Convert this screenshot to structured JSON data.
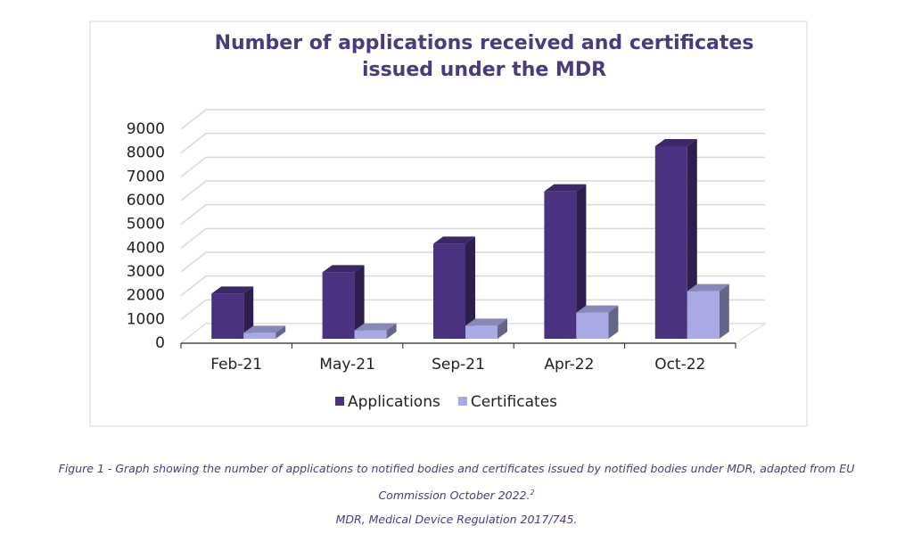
{
  "chart_data": {
    "type": "bar3d",
    "title": "Number of applications received and certificates issued under the MDR",
    "categories": [
      "Feb-21",
      "May-21",
      "Sep-21",
      "Apr-22",
      "Oct-22"
    ],
    "series": [
      {
        "name": "Applications",
        "color": "#4b3280",
        "values": [
          1900,
          2800,
          4000,
          6200,
          8100
        ]
      },
      {
        "name": "Certificates",
        "color": "#a9a9e6",
        "values": [
          250,
          350,
          550,
          1100,
          2000
        ]
      }
    ],
    "ylim": [
      0,
      9000
    ],
    "yticks": [
      0,
      1000,
      2000,
      3000,
      4000,
      5000,
      6000,
      7000,
      8000,
      9000
    ],
    "grid": true,
    "legend": "bottom"
  },
  "caption": {
    "text": "Figure 1 - Graph showing the number of applications to notified bodies and certificates issued by notified bodies under MDR, adapted from EU Commission October 2022.",
    "ref": "2",
    "note": "MDR, Medical Device Regulation 2017/745."
  }
}
